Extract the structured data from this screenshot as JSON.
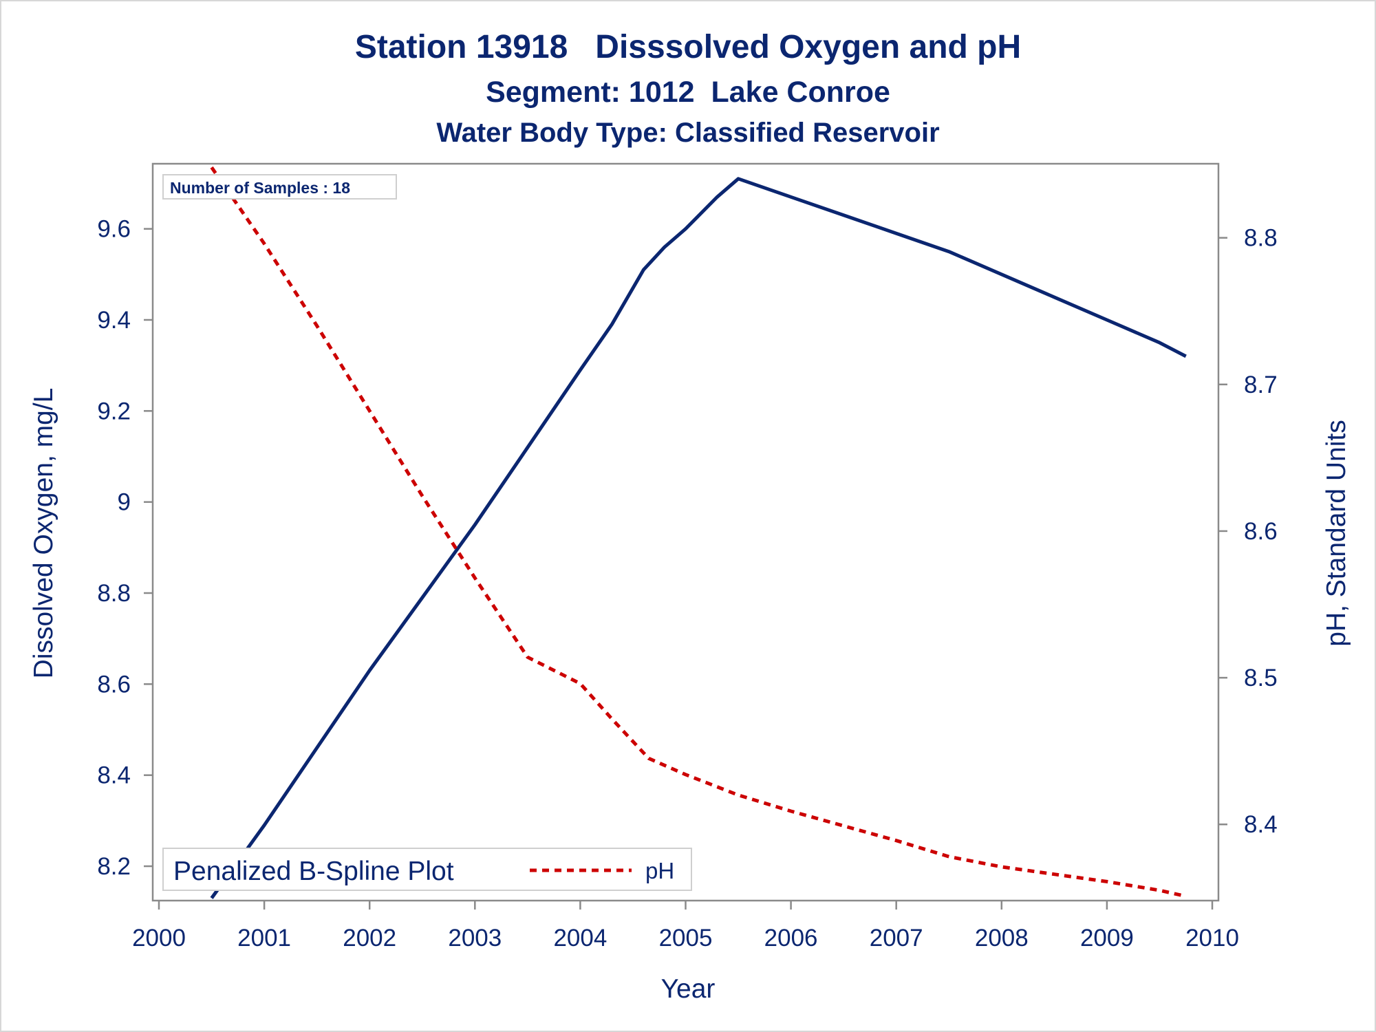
{
  "title": "Station 13918   Disssolved Oxygen and pH",
  "subtitle": "Segment: 1012  Lake Conroe",
  "subtitle2": "Water Body Type: Classified Reservoir",
  "inset": "Number of Samples : 18",
  "legend": {
    "title": "Penalized B-Spline Plot",
    "ph_label": "pH"
  },
  "colors": {
    "text": "#0b2670",
    "do_line": "#0b2670",
    "ph_line": "#cc0000",
    "axis": "#8a8a8a"
  },
  "chart_data": {
    "type": "line",
    "xlabel": "Year",
    "ylabel": "Dissolved Oxygen, mg/L",
    "y2label": "pH, Standard Units",
    "xlim": [
      2000,
      2010
    ],
    "ylim": [
      8.126,
      9.743
    ],
    "y2lim": [
      8.3485,
      8.8505
    ],
    "xticks": [
      "2000",
      "2001",
      "2002",
      "2003",
      "2004",
      "2005",
      "2006",
      "2007",
      "2008",
      "2009",
      "2010"
    ],
    "yticks": [
      "8.2",
      "8.4",
      "8.6",
      "8.8",
      "9",
      "9.2",
      "9.4",
      "9.6"
    ],
    "y2ticks": [
      "8.4",
      "8.5",
      "8.6",
      "8.7",
      "8.8"
    ],
    "series": [
      {
        "name": "Dissolved Oxygen",
        "axis": "left",
        "style": "solid",
        "x": [
          2000.5,
          2001.0,
          2001.5,
          2002.0,
          2002.5,
          2003.0,
          2003.5,
          2004.0,
          2004.3,
          2004.6,
          2004.8,
          2005.0,
          2005.3,
          2005.5,
          2006.0,
          2006.5,
          2007.0,
          2007.5,
          2008.0,
          2008.5,
          2009.0,
          2009.5,
          2009.75
        ],
        "y": [
          8.13,
          8.29,
          8.46,
          8.63,
          8.79,
          8.95,
          9.12,
          9.29,
          9.39,
          9.51,
          9.56,
          9.6,
          9.67,
          9.71,
          9.67,
          9.63,
          9.59,
          9.55,
          9.5,
          9.45,
          9.4,
          9.35,
          9.32
        ]
      },
      {
        "name": "pH",
        "axis": "right",
        "style": "dashed",
        "x": [
          2000.5,
          2001.0,
          2001.5,
          2002.0,
          2002.5,
          2003.0,
          2003.5,
          2004.0,
          2004.3,
          2004.65,
          2005.0,
          2005.5,
          2006.0,
          2006.5,
          2007.0,
          2007.5,
          2008.0,
          2008.5,
          2009.0,
          2009.5,
          2009.75
        ],
        "y": [
          8.848,
          8.796,
          8.74,
          8.682,
          8.624,
          8.568,
          8.514,
          8.496,
          8.472,
          8.445,
          8.434,
          8.42,
          8.409,
          8.399,
          8.389,
          8.378,
          8.371,
          8.366,
          8.361,
          8.355,
          8.351
        ]
      }
    ],
    "grid": false,
    "legend_position": "bottom-left"
  }
}
